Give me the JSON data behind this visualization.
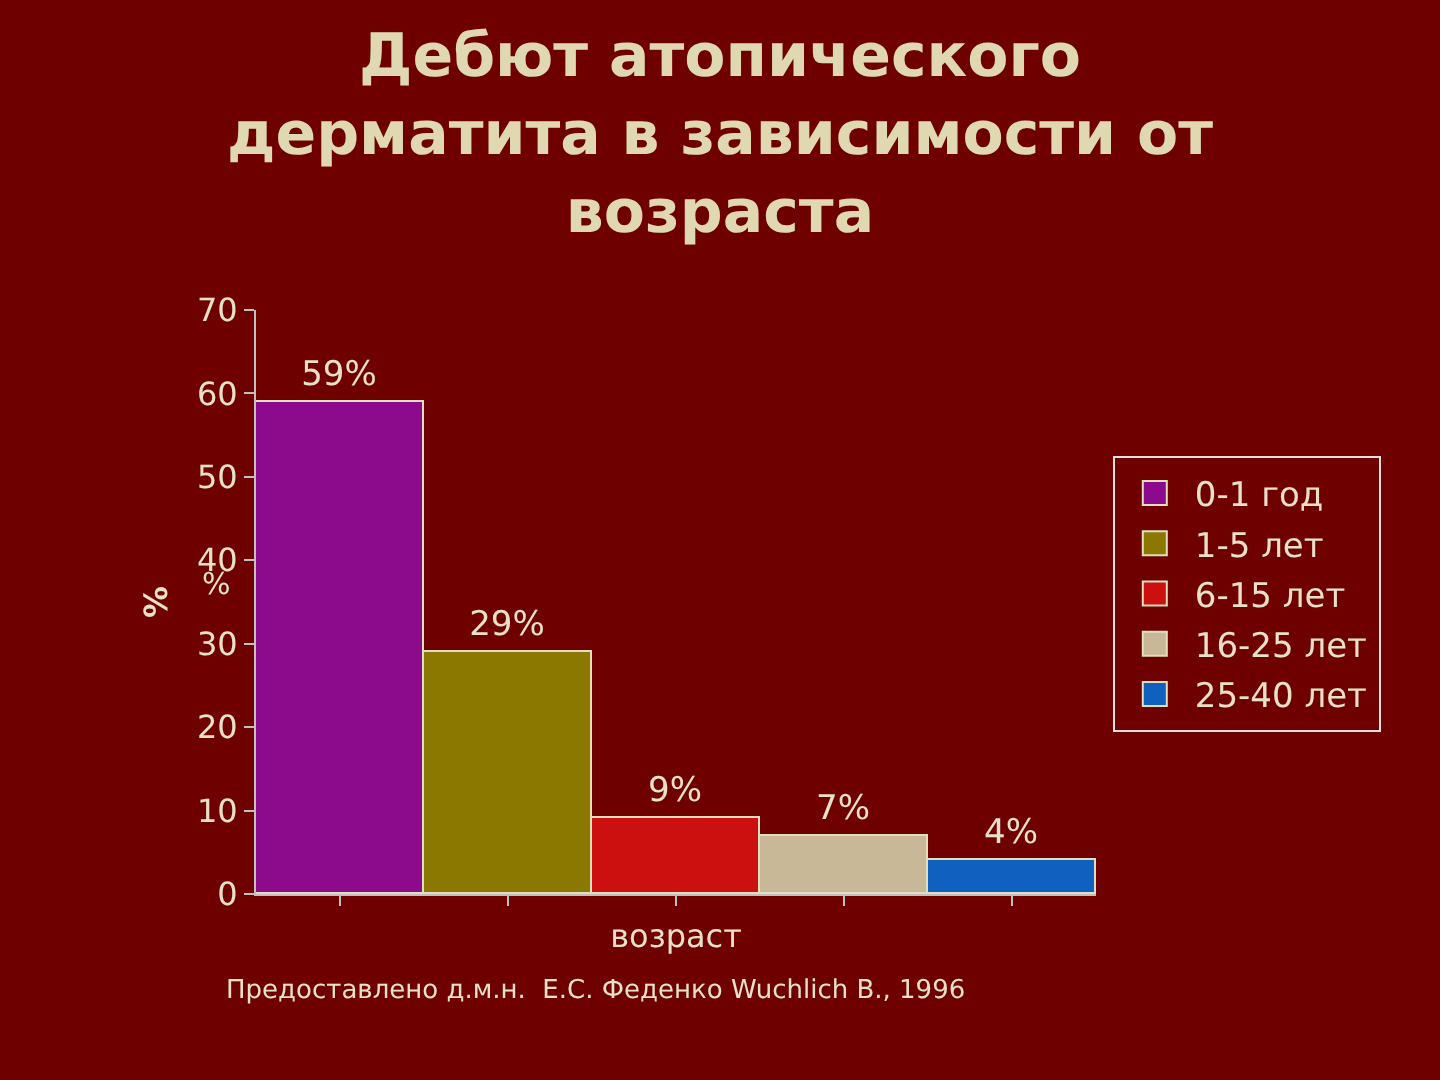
{
  "chart_data": {
    "type": "bar",
    "title": "Дебют атопического\nдерматита в зависимости от\nвозраста",
    "xlabel": "возраст",
    "ylabel": "%",
    "categories": [
      null,
      null,
      null,
      null,
      null
    ],
    "series": [
      {
        "name": "0-1 год",
        "color": "#8c0a8c",
        "values": [
          59,
          null,
          null,
          null,
          null
        ],
        "value_labels": [
          "59%",
          null,
          null,
          null,
          null
        ]
      },
      {
        "name": "1-5 лет",
        "color": "#8a7800",
        "values": [
          null,
          29,
          null,
          null,
          null
        ],
        "value_labels": [
          null,
          "29%",
          null,
          null,
          null
        ]
      },
      {
        "name": "6-15 лет",
        "color": "#cc1010",
        "values": [
          null,
          null,
          9,
          null,
          null
        ],
        "value_labels": [
          null,
          null,
          "9%",
          null,
          null
        ]
      },
      {
        "name": "16-25 лет",
        "color": "#c8b898",
        "values": [
          null,
          null,
          null,
          7,
          null
        ],
        "value_labels": [
          null,
          null,
          null,
          "7%",
          null
        ]
      },
      {
        "name": "25-40 лет",
        "color": "#1060c0",
        "values": [
          null,
          null,
          null,
          null,
          4
        ],
        "value_labels": [
          null,
          null,
          null,
          null,
          "4%"
        ]
      }
    ],
    "ylim": [
      0,
      70
    ],
    "yticks": [
      0,
      10,
      20,
      30,
      40,
      50,
      60,
      70
    ],
    "grid": false,
    "legend": "right",
    "tick_labels": "y",
    "annotations": [
      "%",
      "Предоставлено д.м.н.  Е.С. Феденко Wuchlich B., 1996"
    ]
  }
}
